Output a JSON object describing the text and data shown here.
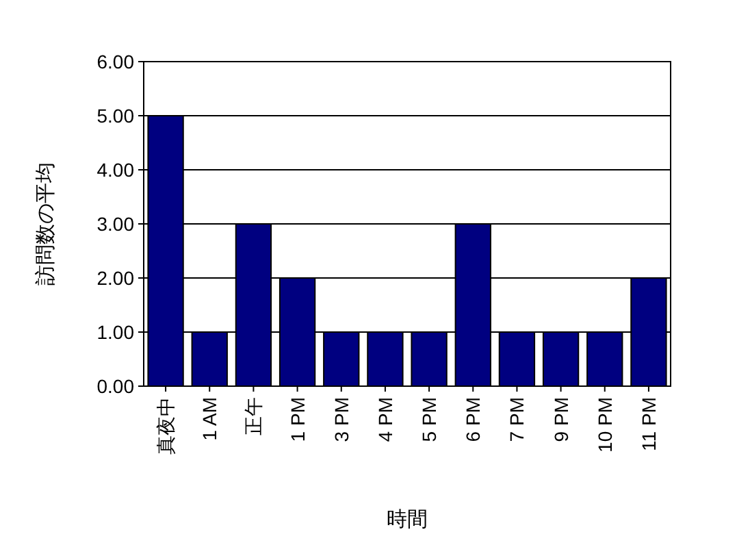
{
  "chart_data": {
    "type": "bar",
    "xlabel": "時間",
    "ylabel": "訪問数の平均",
    "categories": [
      "真夜中",
      "1 AM",
      "正午",
      "1 PM",
      "3 PM",
      "4 PM",
      "5 PM",
      "6 PM",
      "7 PM",
      "9 PM",
      "10 PM",
      "11 PM"
    ],
    "values": [
      5,
      1,
      3,
      2,
      1,
      1,
      1,
      3,
      1,
      1,
      1,
      2
    ],
    "color": "#000080",
    "ylim": [
      0,
      6
    ],
    "yticks": [
      {
        "value": 0,
        "label": "0.00"
      },
      {
        "value": 1,
        "label": "1.00"
      },
      {
        "value": 2,
        "label": "2.00"
      },
      {
        "value": 3,
        "label": "3.00"
      },
      {
        "value": 4,
        "label": "4.00"
      },
      {
        "value": 5,
        "label": "5.00"
      },
      {
        "value": 6,
        "label": "6.00"
      }
    ],
    "grid": "y"
  }
}
